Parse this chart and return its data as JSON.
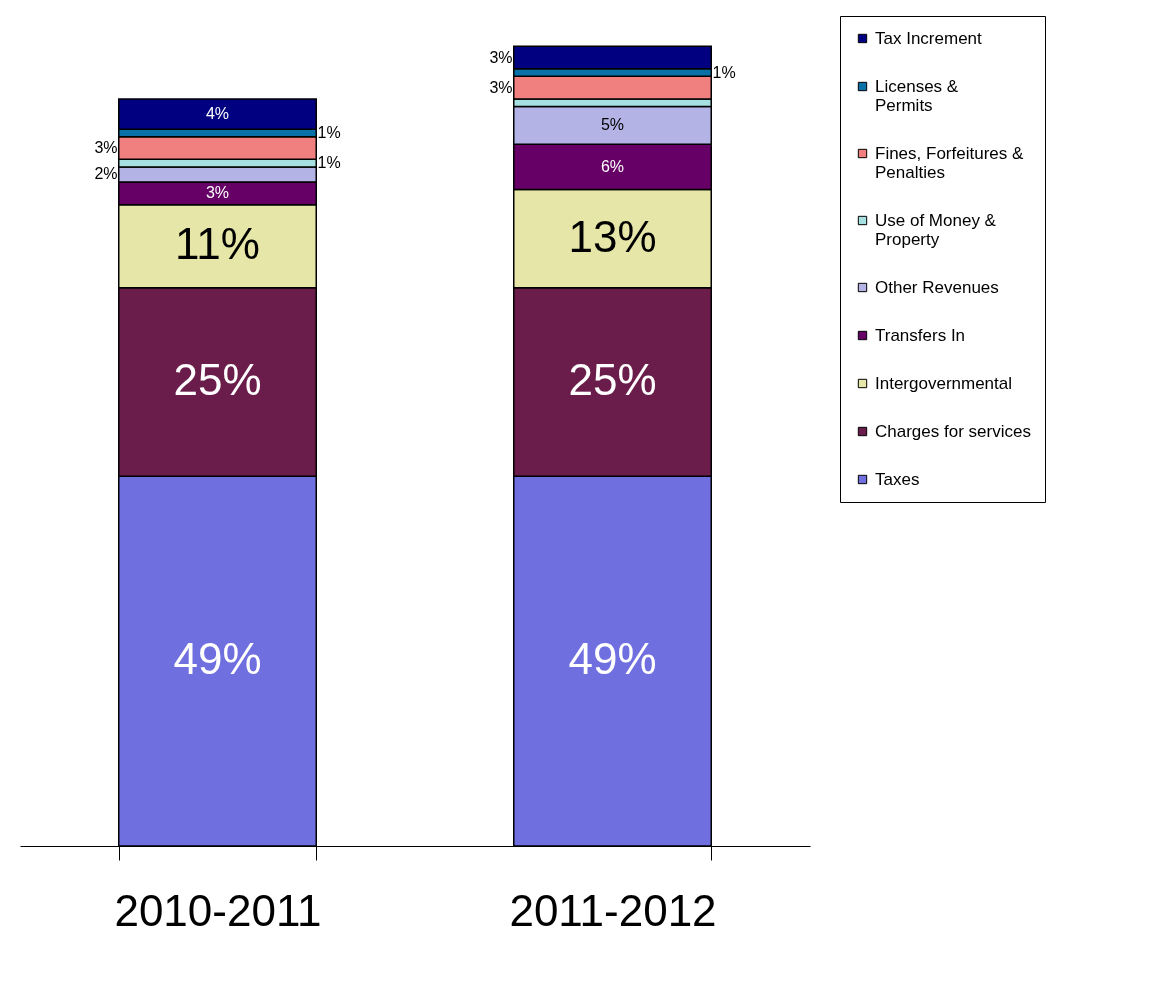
{
  "chart_data": {
    "type": "bar",
    "stacked": true,
    "categories": [
      "2010-2011",
      "2011-2012"
    ],
    "legend": "right",
    "series": [
      {
        "name": "Taxes",
        "color": "#6f6fe0",
        "values": [
          49,
          49
        ],
        "value_labels": [
          "49%",
          "49%"
        ]
      },
      {
        "name": "Charges for services",
        "color": "#6a1c4a",
        "values": [
          25,
          25
        ],
        "value_labels": [
          "25%",
          "25%"
        ]
      },
      {
        "name": "Intergovernmental",
        "color": "#e6e6a8",
        "values": [
          11,
          13
        ],
        "value_labels": [
          "11%",
          "13%"
        ]
      },
      {
        "name": "Transfers In",
        "color": "#660066",
        "values": [
          3,
          6
        ],
        "value_labels": [
          "3%",
          "6%"
        ]
      },
      {
        "name": "Other Revenues",
        "color": "#b3b3e6",
        "values": [
          2,
          5
        ],
        "value_labels": [
          "2%",
          "5%"
        ]
      },
      {
        "name": "Use of Money & Property",
        "color": "#a6e0e0",
        "values": [
          1,
          1
        ],
        "value_labels": [
          "1%",
          null
        ]
      },
      {
        "name": "Fines, Forfeitures & Penalties",
        "color": "#f07f7f",
        "values": [
          3,
          3
        ],
        "value_labels": [
          "3%",
          "3%"
        ]
      },
      {
        "name": "Licenses & Permits",
        "color": "#0a70a8",
        "values": [
          1,
          1
        ],
        "value_labels": [
          "1%",
          "1%"
        ]
      },
      {
        "name": "Tax Increment",
        "color": "#000080",
        "values": [
          4,
          3
        ],
        "value_labels": [
          "4%",
          "3%"
        ]
      }
    ]
  }
}
